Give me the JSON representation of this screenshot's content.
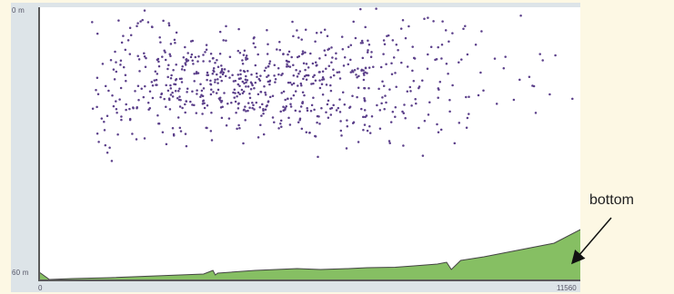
{
  "axis": {
    "y_top_label": "0 m",
    "y_bottom_label": "60 m",
    "x_left_label": "0",
    "x_right_label": "11560"
  },
  "annotation": {
    "bottom_label": "bottom"
  },
  "colors": {
    "points": "#5b3f8a",
    "seabed_fill": "#86bf63",
    "seabed_line": "#444444",
    "frame": "#dde4e8",
    "page_bg": "#fdf8e4"
  },
  "chart_data": {
    "type": "scatter",
    "title": "",
    "xlabel": "",
    "ylabel": "",
    "xlim": [
      0,
      11560
    ],
    "ylim": [
      60,
      0
    ],
    "y_inverted": true,
    "grid": false,
    "legend": "none",
    "point_cloud": {
      "count": 780,
      "x_range": [
        1100,
        11560
      ],
      "depth_mean": 17,
      "depth_spread": 8,
      "note_shape": "dense cluster centered near x 4500, depth 16 m, thinning toward edges"
    },
    "bottom_profile": {
      "x": [
        0,
        200,
        700,
        1500,
        2500,
        3500,
        3700,
        3750,
        3800,
        4600,
        5500,
        6000,
        6600,
        7000,
        7600,
        8000,
        8500,
        8700,
        8800,
        9000,
        9500,
        10000,
        10500,
        11000,
        11560
      ],
      "depth": [
        58.5,
        60,
        59.8,
        59.6,
        59.2,
        58.8,
        58.0,
        59.0,
        58.6,
        58.0,
        57.6,
        57.8,
        57.6,
        57.4,
        57.3,
        57.0,
        56.6,
        56.2,
        57.8,
        55.8,
        55.0,
        54.0,
        53.0,
        52.0,
        49.0
      ]
    }
  }
}
